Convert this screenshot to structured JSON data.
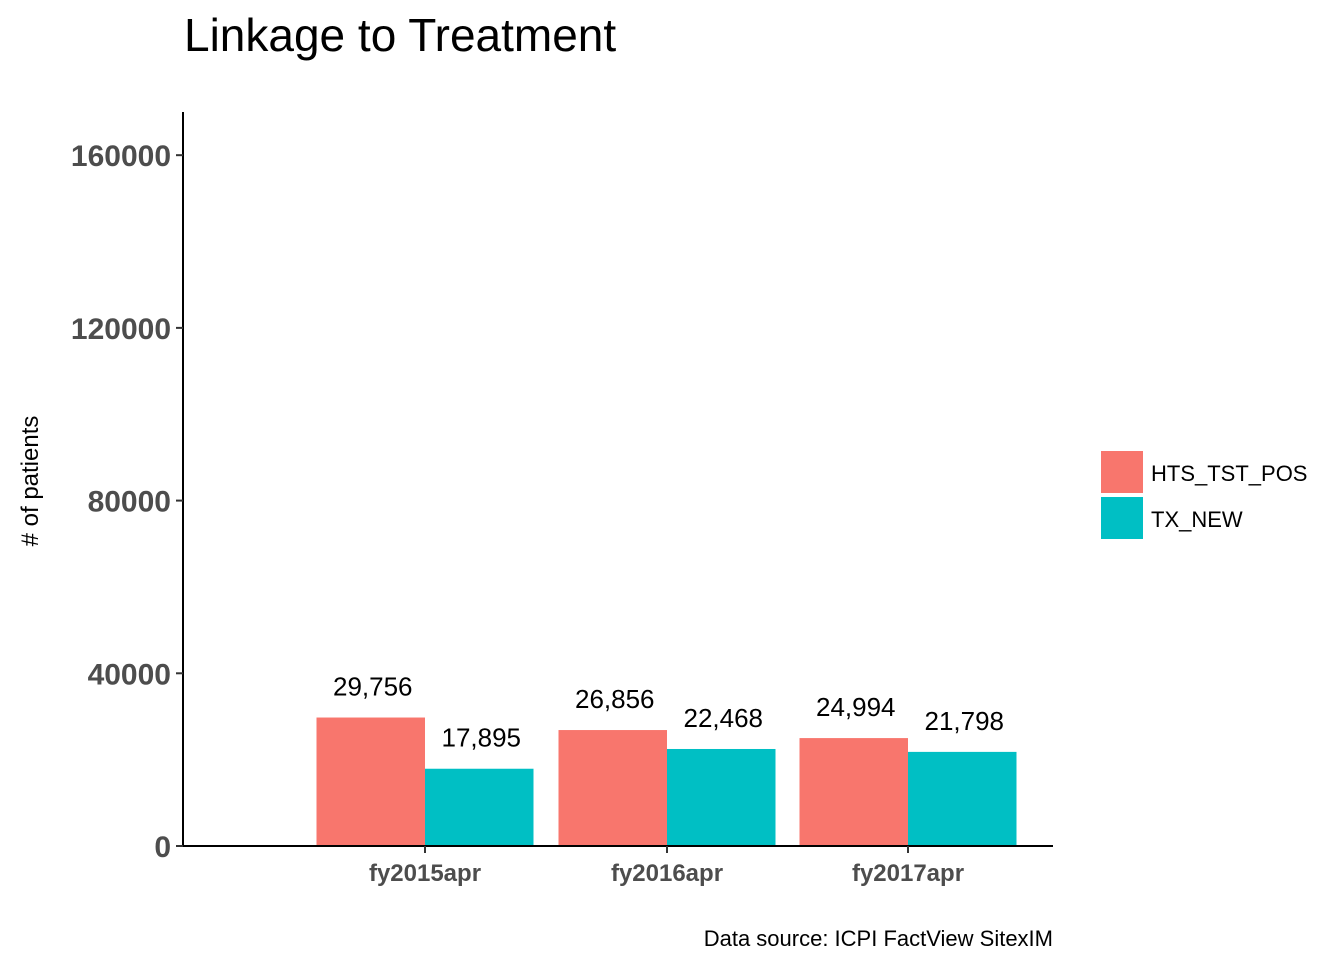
{
  "chart_data": {
    "type": "bar",
    "title": "Linkage to Treatment",
    "xlabel": "",
    "ylabel": "# of patients",
    "caption": "Data source: ICPI FactView SitexIM",
    "categories": [
      "fy2015apr",
      "fy2016apr",
      "fy2017apr"
    ],
    "series": [
      {
        "name": "HTS_TST_POS",
        "color": "#F8766D",
        "values": [
          29756,
          26856,
          24994
        ],
        "labels": [
          "29,756",
          "26,856",
          "24,994"
        ]
      },
      {
        "name": "TX_NEW",
        "color": "#00BFC4",
        "values": [
          17895,
          22468,
          21798
        ],
        "labels": [
          "17,895",
          "22,468",
          "21,798"
        ]
      }
    ],
    "ylim": [
      0,
      170000
    ],
    "yticks": [
      0,
      40000,
      80000,
      120000,
      160000
    ],
    "ytick_labels": [
      "0",
      "40000",
      "80000",
      "120000",
      "160000"
    ],
    "grid": false,
    "legend_position": "right"
  }
}
